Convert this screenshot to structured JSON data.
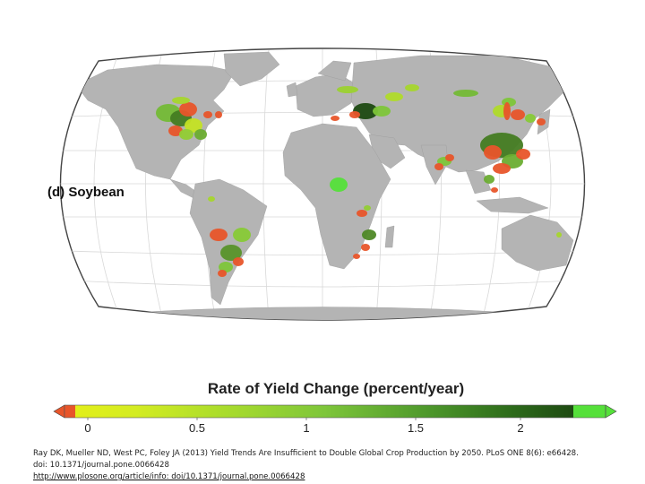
{
  "map": {
    "panel_label": "(d) Soybean",
    "projection": "Robinson",
    "land_color": "#b4b4b4",
    "ocean_color": "#ffffff",
    "graticule_color": "#d8d8d8"
  },
  "legend": {
    "title": "Rate of Yield Change (percent/year)",
    "ticks": [
      "0",
      "0.5",
      "1",
      "1.5",
      "2"
    ],
    "colors": {
      "negative": "#e8552a",
      "low": "#e2ef1a",
      "mid": "#7ec63a",
      "high": "#1e4a12",
      "overflow": "#55e03a"
    }
  },
  "citation": {
    "line1": "Ray DK, Mueller ND, West PC, Foley JA (2013) Yield Trends Are Insufficient to Double Global Crop Production by 2050. PLoS ONE 8(6): e66428.",
    "line2": "doi: 10.1371/journal.pone.0066428",
    "link": "http://www.plosone.org/article/info: doi/10.1371/journal.pone.0066428"
  }
}
